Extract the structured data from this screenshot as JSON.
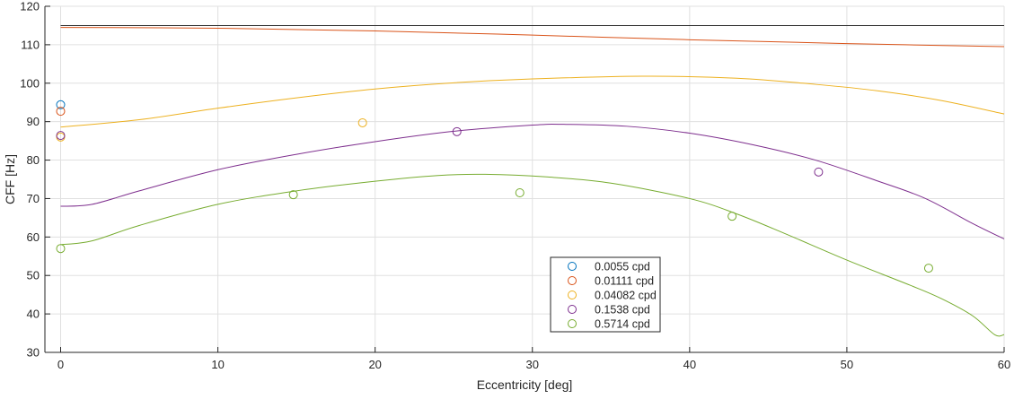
{
  "chart_data": {
    "type": "scatter",
    "title": "",
    "xlabel": "Eccentricity [deg]",
    "ylabel": "CFF [Hz]",
    "xlim": [
      -1,
      60
    ],
    "ylim": [
      30,
      120
    ],
    "xticks": [
      0,
      10,
      20,
      30,
      40,
      50,
      60
    ],
    "yticks": [
      30,
      40,
      50,
      60,
      70,
      80,
      90,
      100,
      110,
      120
    ],
    "grid": true,
    "legend_position": "bottom-center",
    "series": [
      {
        "name": "0.0055 cpd",
        "color": "#0072bd",
        "points": [
          [
            0,
            94.4
          ]
        ],
        "curve": [
          [
            0,
            115
          ],
          [
            60,
            115
          ]
        ],
        "curve_color": "#333333"
      },
      {
        "name": "0.01111 cpd",
        "color": "#d95319",
        "points": [
          [
            0,
            92.7
          ]
        ],
        "curve": [
          [
            0,
            114.5
          ],
          [
            10,
            114.3
          ],
          [
            20,
            113.6
          ],
          [
            30,
            112.5
          ],
          [
            40,
            111.3
          ],
          [
            50,
            110.3
          ],
          [
            60,
            109.5
          ]
        ]
      },
      {
        "name": "0.04082 cpd",
        "color": "#edb120",
        "points": [
          [
            0,
            86.0
          ],
          [
            19.2,
            89.7
          ]
        ],
        "curve": [
          [
            0,
            88.6
          ],
          [
            5,
            90.5
          ],
          [
            10,
            93.5
          ],
          [
            15,
            96.2
          ],
          [
            20,
            98.5
          ],
          [
            25,
            100.1
          ],
          [
            30,
            101.1
          ],
          [
            37,
            101.8
          ],
          [
            43,
            101.3
          ],
          [
            48,
            99.7
          ],
          [
            52,
            98
          ],
          [
            56,
            95.5
          ],
          [
            60,
            92
          ]
        ]
      },
      {
        "name": "0.1538 cpd",
        "color": "#7e2f8e",
        "points": [
          [
            0,
            86.4
          ],
          [
            25.2,
            87.4
          ],
          [
            48.2,
            76.9
          ]
        ],
        "curve": [
          [
            0,
            68
          ],
          [
            2,
            68.5
          ],
          [
            5,
            72
          ],
          [
            10,
            77.5
          ],
          [
            15,
            81.5
          ],
          [
            20,
            84.8
          ],
          [
            25,
            87.5
          ],
          [
            30,
            89.1
          ],
          [
            32,
            89.3
          ],
          [
            36,
            88.8
          ],
          [
            40,
            87
          ],
          [
            44,
            84
          ],
          [
            48,
            80
          ],
          [
            52,
            74.5
          ],
          [
            55,
            70
          ],
          [
            58,
            63.5
          ],
          [
            60,
            59.5
          ]
        ]
      },
      {
        "name": "0.5714 cpd",
        "color": "#77ac30",
        "points": [
          [
            0,
            57.0
          ],
          [
            14.8,
            71.0
          ],
          [
            29.2,
            71.5
          ],
          [
            42.7,
            65.4
          ],
          [
            55.2,
            51.9
          ]
        ],
        "curve": [
          [
            0,
            58
          ],
          [
            2,
            59
          ],
          [
            5,
            63
          ],
          [
            10,
            68.5
          ],
          [
            15,
            72
          ],
          [
            20,
            74.5
          ],
          [
            24,
            76
          ],
          [
            27,
            76.3
          ],
          [
            31,
            75.6
          ],
          [
            35,
            74
          ],
          [
            40,
            70
          ],
          [
            43,
            66
          ],
          [
            46,
            61
          ],
          [
            50,
            54
          ],
          [
            54,
            47.5
          ],
          [
            56,
            44
          ],
          [
            58,
            39.5
          ],
          [
            59.4,
            34.6
          ],
          [
            60,
            34.6
          ]
        ]
      }
    ]
  }
}
